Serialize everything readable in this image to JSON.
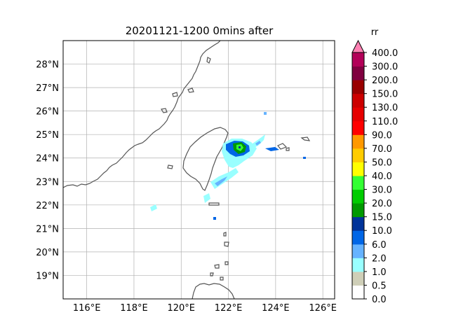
{
  "title": "20201121-1200  0mins after",
  "map": {
    "lon_range": [
      115,
      126.5
    ],
    "lat_range": [
      18,
      29
    ],
    "x_ticks": [
      "116°E",
      "118°E",
      "120°E",
      "122°E",
      "124°E",
      "126°E"
    ],
    "y_ticks": [
      "19°N",
      "20°N",
      "21°N",
      "22°N",
      "23°N",
      "24°N",
      "25°N",
      "26°N",
      "27°N",
      "28°N"
    ],
    "grid": true,
    "coastline_color": "#555555"
  },
  "colorbar": {
    "title": "rr",
    "levels": [
      "0.0",
      "0.5",
      "1.0",
      "2.0",
      "6.0",
      "10.0",
      "15.0",
      "20.0",
      "30.0",
      "40.0",
      "50.0",
      "70.0",
      "90.0",
      "110.0",
      "130.0",
      "150.0",
      "200.0",
      "300.0",
      "400.0"
    ],
    "colors": [
      "#ffffff",
      "#cfcfb8",
      "#99ffff",
      "#66b3ff",
      "#0066e6",
      "#003399",
      "#009900",
      "#00cc00",
      "#33ff33",
      "#ffff00",
      "#ffcc00",
      "#ff9900",
      "#ff0000",
      "#e60000",
      "#cc0000",
      "#990000",
      "#800040",
      "#b30059",
      "#ff0066"
    ],
    "extend_color": "#ff80b3"
  }
}
